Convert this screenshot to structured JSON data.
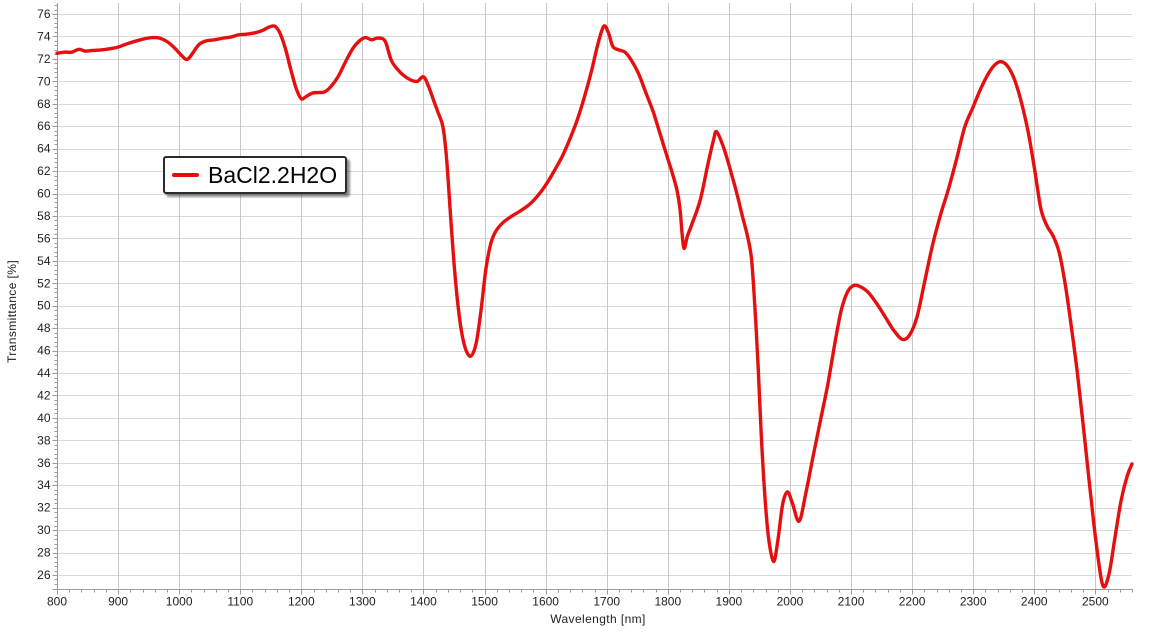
{
  "chart_data": {
    "type": "line",
    "title": "",
    "xlabel": "Wavelength [nm]",
    "ylabel": "Transmittance [%]",
    "xlim": [
      800,
      2560
    ],
    "ylim": [
      24.75,
      77.0
    ],
    "grid": true,
    "x_major_ticks": [
      800,
      900,
      1000,
      1100,
      1200,
      1300,
      1400,
      1500,
      1600,
      1700,
      1800,
      1900,
      2000,
      2100,
      2200,
      2300,
      2400,
      2500
    ],
    "x_minor_step": 20,
    "y_major_ticks": [
      26,
      28,
      30,
      32,
      34,
      36,
      38,
      40,
      42,
      44,
      46,
      48,
      50,
      52,
      54,
      56,
      58,
      60,
      62,
      64,
      66,
      68,
      70,
      72,
      74,
      76
    ],
    "y_minor_step": 0.4,
    "legend": {
      "label": "BaCl2.2H2O",
      "position": "upper-left"
    },
    "colors": {
      "series": "#e60f0f",
      "grid_h": "#d9d9d9",
      "grid_v": "#c8c8c8",
      "axis": "#9b9b9b",
      "text": "#1e1e26",
      "background": "#ffffff"
    },
    "series": [
      {
        "name": "BaCl2.2H2O",
        "color": "#e60f0f",
        "points": [
          [
            800,
            72.5
          ],
          [
            812,
            72.6
          ],
          [
            824,
            72.6
          ],
          [
            836,
            72.85
          ],
          [
            846,
            72.7
          ],
          [
            858,
            72.75
          ],
          [
            872,
            72.8
          ],
          [
            886,
            72.9
          ],
          [
            900,
            73.05
          ],
          [
            915,
            73.35
          ],
          [
            930,
            73.6
          ],
          [
            944,
            73.8
          ],
          [
            957,
            73.9
          ],
          [
            968,
            73.85
          ],
          [
            980,
            73.55
          ],
          [
            992,
            73.0
          ],
          [
            1004,
            72.3
          ],
          [
            1013,
            71.95
          ],
          [
            1022,
            72.5
          ],
          [
            1032,
            73.25
          ],
          [
            1044,
            73.6
          ],
          [
            1058,
            73.7
          ],
          [
            1072,
            73.85
          ],
          [
            1085,
            73.95
          ],
          [
            1098,
            74.15
          ],
          [
            1110,
            74.2
          ],
          [
            1122,
            74.3
          ],
          [
            1135,
            74.5
          ],
          [
            1148,
            74.85
          ],
          [
            1157,
            74.9
          ],
          [
            1165,
            74.3
          ],
          [
            1174,
            72.9
          ],
          [
            1183,
            71.0
          ],
          [
            1192,
            69.3
          ],
          [
            1200,
            68.45
          ],
          [
            1208,
            68.65
          ],
          [
            1218,
            68.95
          ],
          [
            1228,
            69.0
          ],
          [
            1238,
            69.05
          ],
          [
            1248,
            69.5
          ],
          [
            1260,
            70.4
          ],
          [
            1272,
            71.7
          ],
          [
            1284,
            72.9
          ],
          [
            1295,
            73.6
          ],
          [
            1305,
            73.9
          ],
          [
            1315,
            73.7
          ],
          [
            1325,
            73.85
          ],
          [
            1337,
            73.6
          ],
          [
            1347,
            71.9
          ],
          [
            1357,
            71.1
          ],
          [
            1368,
            70.5
          ],
          [
            1380,
            70.1
          ],
          [
            1390,
            70.0
          ],
          [
            1400,
            70.4
          ],
          [
            1408,
            69.6
          ],
          [
            1416,
            68.4
          ],
          [
            1424,
            67.2
          ],
          [
            1432,
            65.9
          ],
          [
            1438,
            63.0
          ],
          [
            1445,
            57.5
          ],
          [
            1452,
            52.5
          ],
          [
            1460,
            48.5
          ],
          [
            1468,
            46.3
          ],
          [
            1477,
            45.5
          ],
          [
            1486,
            46.6
          ],
          [
            1494,
            49.5
          ],
          [
            1502,
            53.2
          ],
          [
            1510,
            55.5
          ],
          [
            1518,
            56.6
          ],
          [
            1530,
            57.4
          ],
          [
            1545,
            58.0
          ],
          [
            1560,
            58.5
          ],
          [
            1575,
            59.1
          ],
          [
            1590,
            60.0
          ],
          [
            1603,
            61.0
          ],
          [
            1616,
            62.2
          ],
          [
            1628,
            63.4
          ],
          [
            1640,
            64.9
          ],
          [
            1652,
            66.6
          ],
          [
            1664,
            68.7
          ],
          [
            1675,
            70.9
          ],
          [
            1685,
            73.2
          ],
          [
            1695,
            74.9
          ],
          [
            1703,
            74.3
          ],
          [
            1710,
            73.1
          ],
          [
            1720,
            72.8
          ],
          [
            1730,
            72.6
          ],
          [
            1740,
            71.9
          ],
          [
            1752,
            70.7
          ],
          [
            1764,
            69.0
          ],
          [
            1776,
            67.3
          ],
          [
            1788,
            65.2
          ],
          [
            1800,
            63.1
          ],
          [
            1808,
            61.7
          ],
          [
            1815,
            60.3
          ],
          [
            1820,
            58.6
          ],
          [
            1826,
            55.2
          ],
          [
            1832,
            56.2
          ],
          [
            1839,
            57.2
          ],
          [
            1853,
            59.4
          ],
          [
            1866,
            62.7
          ],
          [
            1875,
            64.8
          ],
          [
            1880,
            65.5
          ],
          [
            1892,
            64.0
          ],
          [
            1904,
            61.8
          ],
          [
            1914,
            59.8
          ],
          [
            1922,
            58.0
          ],
          [
            1930,
            56.3
          ],
          [
            1937,
            54.2
          ],
          [
            1943,
            49.5
          ],
          [
            1948,
            44.5
          ],
          [
            1953,
            38.5
          ],
          [
            1959,
            33.0
          ],
          [
            1965,
            29.3
          ],
          [
            1973,
            27.2
          ],
          [
            1980,
            29.0
          ],
          [
            1988,
            32.3
          ],
          [
            1996,
            33.4
          ],
          [
            2004,
            32.4
          ],
          [
            2015,
            30.8
          ],
          [
            2026,
            33.3
          ],
          [
            2038,
            36.6
          ],
          [
            2050,
            39.8
          ],
          [
            2062,
            43.0
          ],
          [
            2074,
            46.8
          ],
          [
            2084,
            49.6
          ],
          [
            2094,
            51.2
          ],
          [
            2104,
            51.8
          ],
          [
            2115,
            51.7
          ],
          [
            2128,
            51.2
          ],
          [
            2142,
            50.2
          ],
          [
            2156,
            49.0
          ],
          [
            2170,
            47.8
          ],
          [
            2184,
            47.0
          ],
          [
            2196,
            47.4
          ],
          [
            2208,
            49.0
          ],
          [
            2220,
            52.0
          ],
          [
            2233,
            55.3
          ],
          [
            2246,
            58.0
          ],
          [
            2259,
            60.3
          ],
          [
            2272,
            62.9
          ],
          [
            2286,
            65.9
          ],
          [
            2299,
            67.6
          ],
          [
            2312,
            69.3
          ],
          [
            2325,
            70.7
          ],
          [
            2336,
            71.5
          ],
          [
            2346,
            71.75
          ],
          [
            2357,
            71.3
          ],
          [
            2368,
            70.1
          ],
          [
            2380,
            67.9
          ],
          [
            2391,
            65.2
          ],
          [
            2401,
            62.0
          ],
          [
            2411,
            58.6
          ],
          [
            2421,
            57.1
          ],
          [
            2431,
            56.2
          ],
          [
            2441,
            54.7
          ],
          [
            2451,
            51.8
          ],
          [
            2461,
            48.0
          ],
          [
            2471,
            43.8
          ],
          [
            2481,
            38.9
          ],
          [
            2491,
            33.8
          ],
          [
            2501,
            29.0
          ],
          [
            2512,
            25.1
          ],
          [
            2522,
            26.0
          ],
          [
            2532,
            29.3
          ],
          [
            2542,
            32.6
          ],
          [
            2552,
            34.8
          ],
          [
            2560,
            35.9
          ]
        ]
      }
    ]
  }
}
